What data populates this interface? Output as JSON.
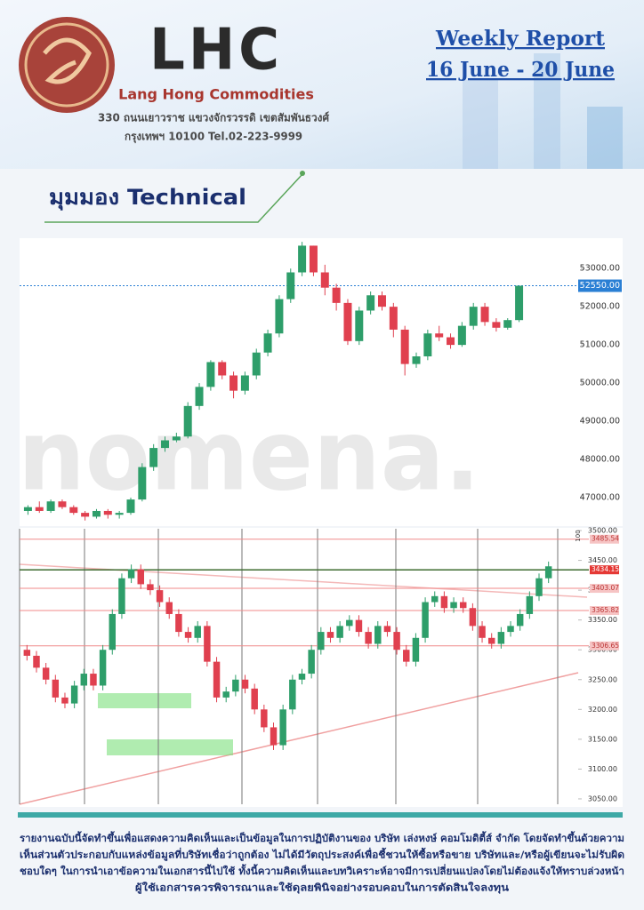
{
  "header": {
    "logo_text": "LHC",
    "company": "Lang Hong Commodities",
    "address": [
      "330 ถนนเยาวราช แขวงจักรวรรดิ เขตสัมพันธวงศ์",
      "กรุงเทพฯ 10100 Tel.02-223-9999"
    ],
    "report_title": "Weekly Report",
    "report_dates": "16 June - 20 June"
  },
  "section_title": "มุมมอง Technical",
  "chart_data": [
    {
      "type": "candlestick",
      "watermark": "nomena.",
      "up_color": "#2e9e6a",
      "down_color": "#e0404f",
      "candles": [
        [
          46650,
          46800,
          46550,
          46750
        ],
        [
          46750,
          46900,
          46600,
          46650
        ],
        [
          46650,
          46950,
          46600,
          46900
        ],
        [
          46900,
          46950,
          46700,
          46750
        ],
        [
          46750,
          46800,
          46550,
          46600
        ],
        [
          46600,
          46650,
          46400,
          46500
        ],
        [
          46500,
          46700,
          46450,
          46650
        ],
        [
          46650,
          46700,
          46450,
          46550
        ],
        [
          46550,
          46650,
          46450,
          46600
        ],
        [
          46600,
          47000,
          46550,
          46950
        ],
        [
          46950,
          47900,
          46900,
          47800
        ],
        [
          47800,
          48400,
          47700,
          48300
        ],
        [
          48300,
          48600,
          48200,
          48500
        ],
        [
          48500,
          48700,
          48450,
          48600
        ],
        [
          48600,
          49500,
          48550,
          49400
        ],
        [
          49400,
          50000,
          49300,
          49900
        ],
        [
          49900,
          50600,
          49800,
          50550
        ],
        [
          50550,
          50600,
          50100,
          50200
        ],
        [
          50200,
          50300,
          49600,
          49800
        ],
        [
          49800,
          50300,
          49700,
          50200
        ],
        [
          50200,
          50900,
          50100,
          50800
        ],
        [
          50800,
          51400,
          50700,
          51300
        ],
        [
          51300,
          52300,
          51200,
          52200
        ],
        [
          52200,
          53000,
          52100,
          52900
        ],
        [
          52900,
          53700,
          52800,
          53600
        ],
        [
          53600,
          53600,
          52800,
          52900
        ],
        [
          52900,
          53100,
          52300,
          52500
        ],
        [
          52500,
          52600,
          51900,
          52100
        ],
        [
          52100,
          52200,
          51000,
          51100
        ],
        [
          51100,
          52000,
          51000,
          51900
        ],
        [
          51900,
          52400,
          51800,
          52300
        ],
        [
          52300,
          52400,
          51900,
          52000
        ],
        [
          52000,
          52100,
          51200,
          51400
        ],
        [
          51400,
          51500,
          50200,
          50500
        ],
        [
          50500,
          50800,
          50400,
          50700
        ],
        [
          50700,
          51400,
          50600,
          51300
        ],
        [
          51300,
          51500,
          51100,
          51200
        ],
        [
          51200,
          51300,
          50900,
          51000
        ],
        [
          51000,
          51600,
          50950,
          51500
        ],
        [
          51500,
          52100,
          51400,
          52000
        ],
        [
          52000,
          52100,
          51500,
          51600
        ],
        [
          51600,
          51700,
          51350,
          51450
        ],
        [
          51450,
          51700,
          51400,
          51650
        ],
        [
          51650,
          52550,
          51600,
          52550
        ]
      ],
      "ylim": [
        46300,
        53750
      ],
      "yticks": [
        {
          "value": 47000,
          "label": "47000.00"
        },
        {
          "value": 48000,
          "label": "48000.00"
        },
        {
          "value": 49000,
          "label": "49000.00"
        },
        {
          "value": 50000,
          "label": "50000.00"
        },
        {
          "value": 51000,
          "label": "51000.00"
        },
        {
          "value": 52000,
          "label": "52000.00"
        },
        {
          "value": 53000,
          "label": "53000.00"
        }
      ],
      "price_marker": {
        "value": 52550,
        "label": "52550.00"
      }
    },
    {
      "type": "candlestick",
      "up_color": "#2e9e6a",
      "down_color": "#e0404f",
      "scale_label": "100",
      "candles": [
        [
          3300,
          3308,
          3282,
          3290
        ],
        [
          3290,
          3298,
          3262,
          3270
        ],
        [
          3270,
          3278,
          3242,
          3250
        ],
        [
          3250,
          3258,
          3212,
          3220
        ],
        [
          3220,
          3228,
          3202,
          3210
        ],
        [
          3210,
          3248,
          3202,
          3240
        ],
        [
          3240,
          3268,
          3232,
          3260
        ],
        [
          3260,
          3268,
          3232,
          3240
        ],
        [
          3240,
          3308,
          3232,
          3300
        ],
        [
          3300,
          3368,
          3292,
          3360
        ],
        [
          3360,
          3428,
          3352,
          3420
        ],
        [
          3420,
          3443,
          3412,
          3435
        ],
        [
          3435,
          3443,
          3402,
          3410
        ],
        [
          3410,
          3418,
          3392,
          3400
        ],
        [
          3400,
          3408,
          3372,
          3380
        ],
        [
          3380,
          3388,
          3352,
          3360
        ],
        [
          3360,
          3368,
          3322,
          3330
        ],
        [
          3330,
          3338,
          3312,
          3320
        ],
        [
          3320,
          3348,
          3312,
          3340
        ],
        [
          3340,
          3348,
          3272,
          3280
        ],
        [
          3280,
          3288,
          3212,
          3220
        ],
        [
          3220,
          3238,
          3212,
          3230
        ],
        [
          3230,
          3258,
          3222,
          3250
        ],
        [
          3250,
          3258,
          3227,
          3235
        ],
        [
          3235,
          3243,
          3192,
          3200
        ],
        [
          3200,
          3208,
          3162,
          3170
        ],
        [
          3170,
          3178,
          3132,
          3140
        ],
        [
          3140,
          3208,
          3132,
          3200
        ],
        [
          3200,
          3258,
          3192,
          3250
        ],
        [
          3250,
          3268,
          3242,
          3260
        ],
        [
          3260,
          3308,
          3252,
          3300
        ],
        [
          3300,
          3338,
          3292,
          3330
        ],
        [
          3330,
          3338,
          3312,
          3320
        ],
        [
          3320,
          3348,
          3312,
          3340
        ],
        [
          3340,
          3358,
          3332,
          3350
        ],
        [
          3350,
          3358,
          3322,
          3330
        ],
        [
          3330,
          3338,
          3302,
          3310
        ],
        [
          3310,
          3348,
          3302,
          3340
        ],
        [
          3340,
          3348,
          3322,
          3330
        ],
        [
          3330,
          3338,
          3292,
          3300
        ],
        [
          3300,
          3308,
          3272,
          3280
        ],
        [
          3280,
          3328,
          3272,
          3320
        ],
        [
          3320,
          3388,
          3312,
          3380
        ],
        [
          3380,
          3398,
          3372,
          3390
        ],
        [
          3390,
          3398,
          3362,
          3370
        ],
        [
          3370,
          3388,
          3362,
          3380
        ],
        [
          3380,
          3388,
          3362,
          3370
        ],
        [
          3370,
          3378,
          3332,
          3340
        ],
        [
          3340,
          3348,
          3312,
          3320
        ],
        [
          3320,
          3328,
          3302,
          3310
        ],
        [
          3310,
          3338,
          3302,
          3330
        ],
        [
          3330,
          3348,
          3322,
          3340
        ],
        [
          3340,
          3368,
          3332,
          3360
        ],
        [
          3360,
          3398,
          3352,
          3390
        ],
        [
          3390,
          3428,
          3382,
          3420
        ],
        [
          3420,
          3448,
          3412,
          3440
        ]
      ],
      "ylim": [
        3041,
        3503
      ],
      "yticks": [
        {
          "value": 3050,
          "label": "3050.00"
        },
        {
          "value": 3100,
          "label": "3100.00"
        },
        {
          "value": 3150,
          "label": "3150.00"
        },
        {
          "value": 3200,
          "label": "3200.00"
        },
        {
          "value": 3250,
          "label": "3250.00"
        },
        {
          "value": 3300,
          "label": "3300.00"
        },
        {
          "value": 3350,
          "label": "3350.00"
        },
        {
          "value": 3400,
          "label": "3400.00"
        },
        {
          "value": 3450,
          "label": "3450.00"
        },
        {
          "value": 3500,
          "label": "3500.00"
        }
      ],
      "levels": [
        3485.54,
        3434.15,
        3403.07,
        3365.82,
        3306.65
      ]
    }
  ],
  "disclaimer": [
    "รายงานฉบับนี้จัดทำขึ้นเพื่อแสดงความคิดเห็นและเป็นข้อมูลในการปฏิบัติงานของ บริษัท เล่งหงษ์ คอมโมดิตี้ส์ จำกัด โดยจัดทำขึ้นด้วยความ",
    "เห็นส่วนตัวประกอบกับแหล่งข้อมูลที่บริษัทเชื่อว่าถูกต้อง ไม่ได้มีวัตถุประสงค์เพื่อชี้ชวนให้ซื้อหรือขาย บริษัทและ/หรือผู้เขียนจะไม่รับผิด",
    "ชอบใดๆ ในการนำเอาข้อความในเอกสารนี้ไปใช้ ทั้งนี้ความคิดเห็นและบทวิเคราะห์อาจมีการเปลี่ยนแปลงโดยไม่ต้องแจ้งให้ทราบล่วงหน้า",
    "ผู้ใช้เอกสารควรพิจารณาและใช้ดุลยพินิจอย่างรอบคอบในการตัดสินใจลงทุน"
  ]
}
